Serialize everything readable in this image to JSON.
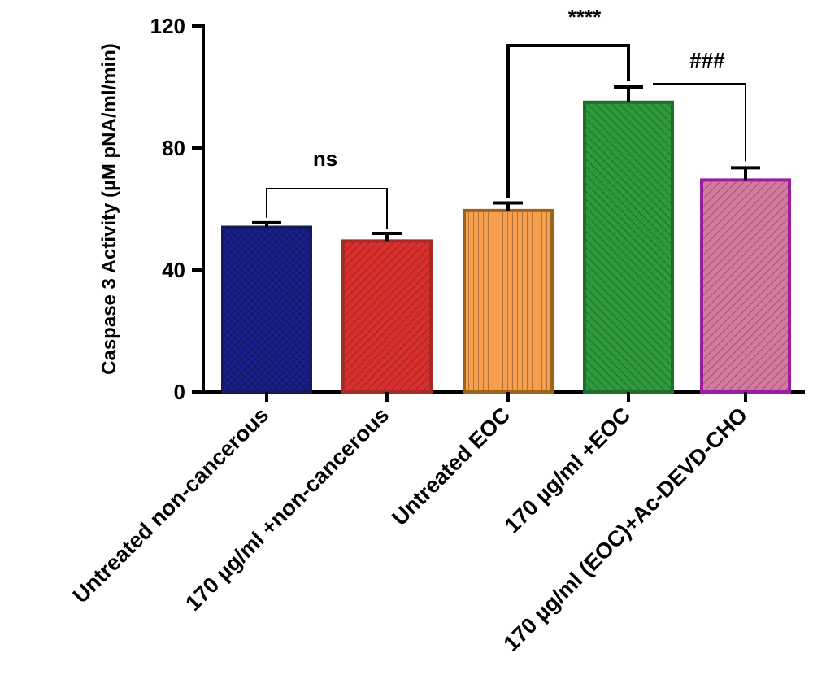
{
  "chart_data": {
    "type": "bar",
    "ylabel": "Caspase 3 Activity (µM pNA/ml/min)",
    "ylim": [
      0,
      120
    ],
    "yticks": [
      0,
      40,
      80,
      120
    ],
    "categories": [
      "Untreated non-cancerous",
      "170 µg/ml +non-cancerous",
      "Untreated EOC",
      "170 µg/ml +EOC",
      "170 µg/ml (EOC)+Ac-DEVD-CHO"
    ],
    "values": [
      54,
      49.5,
      59.5,
      95,
      69.5
    ],
    "errors": [
      1.5,
      2.5,
      2.5,
      5,
      4
    ],
    "colors": [
      "#1a1f8c",
      "#d9302e",
      "#f6a04e",
      "#2e9a3c",
      "#d47a9e"
    ],
    "edge_colors": [
      "#15195e",
      "#a52a28",
      "#9c6418",
      "#1f6e2b",
      "#9a1e9e"
    ],
    "annotations": [
      {
        "text": "ns",
        "from": 0,
        "to": 1
      },
      {
        "text": "****",
        "from": 2,
        "to": 3
      },
      {
        "text": "###",
        "from": 3,
        "to": 4
      }
    ]
  }
}
